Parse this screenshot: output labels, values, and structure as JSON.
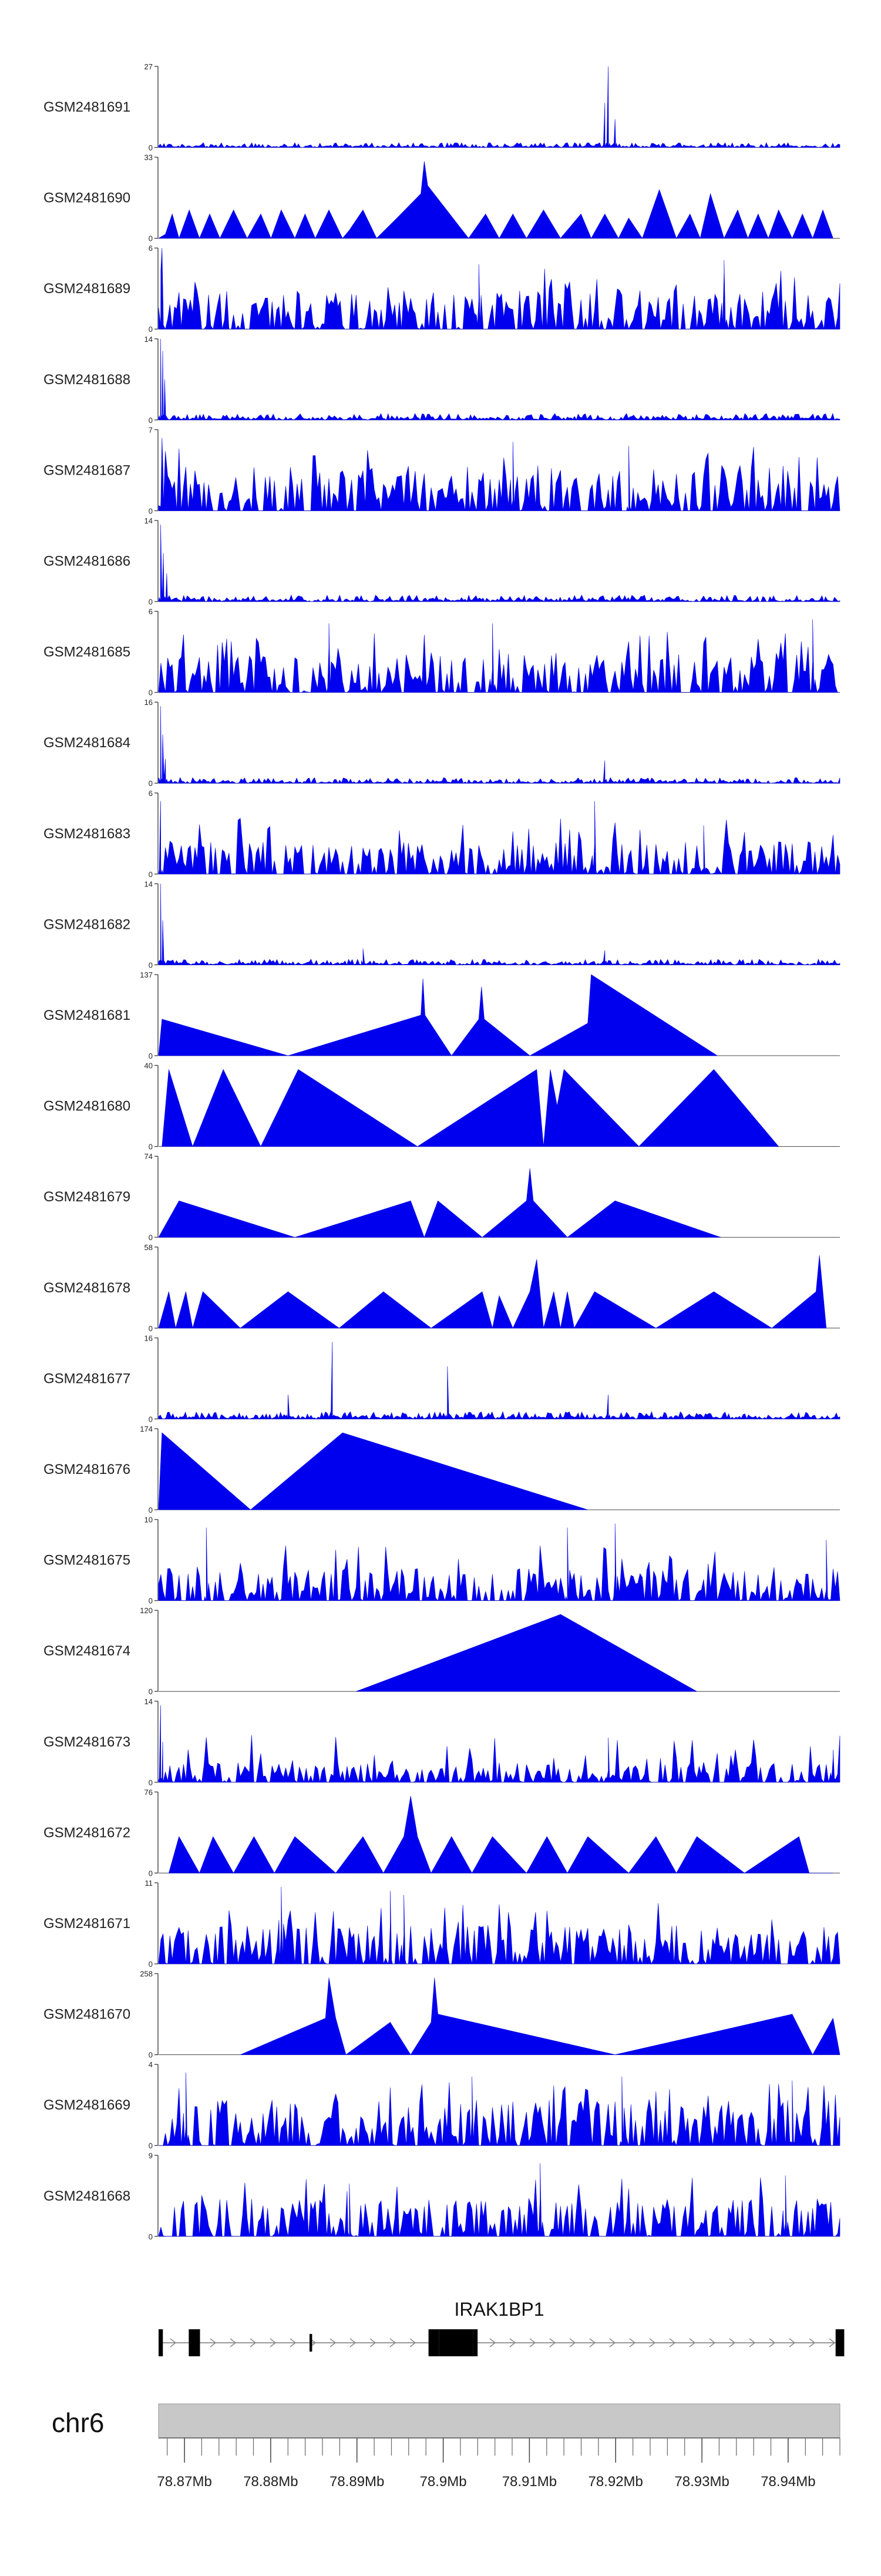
{
  "colors": {
    "signal": "#0000ee",
    "axis": "#444444",
    "ideogram": "#c8c8c8",
    "gene": "#000000"
  },
  "chart_data": {
    "type": "area",
    "chromosome": "chr6",
    "gene": {
      "name": "IRAK1BP1",
      "strand": "+"
    },
    "x_range": [
      78.867,
      78.946
    ],
    "ticks": [
      {
        "value": 78.87,
        "label": "78.87Mb"
      },
      {
        "value": 78.88,
        "label": "78.88Mb"
      },
      {
        "value": 78.89,
        "label": "78.89Mb"
      },
      {
        "value": 78.9,
        "label": "78.9Mb"
      },
      {
        "value": 78.91,
        "label": "78.91Mb"
      },
      {
        "value": 78.92,
        "label": "78.92Mb"
      },
      {
        "value": 78.93,
        "label": "78.93Mb"
      },
      {
        "value": 78.94,
        "label": "78.94Mb"
      }
    ],
    "exons": [
      {
        "start": 78.867,
        "end": 78.8675,
        "thick": true
      },
      {
        "start": 78.8705,
        "end": 78.8718,
        "thick": true
      },
      {
        "start": 78.8845,
        "end": 78.8848,
        "thick": false
      },
      {
        "start": 78.8983,
        "end": 78.8995,
        "thick": true
      },
      {
        "start": 78.8995,
        "end": 78.9035,
        "thick": true
      },
      {
        "start": 78.9035,
        "end": 78.904,
        "thick": true
      },
      {
        "start": 78.9455,
        "end": 78.9465,
        "thick": true
      }
    ],
    "tracks": [
      {
        "name": "GSM2481691",
        "max": "27",
        "ymax": 27,
        "style": "dense",
        "base": 0.06,
        "spikes": [
          [
            0.66,
            1.0
          ],
          [
            0.655,
            0.55
          ],
          [
            0.67,
            0.35
          ]
        ]
      },
      {
        "name": "GSM2481690",
        "max": "33",
        "ymax": 33,
        "style": "peaks",
        "points": [
          [
            0,
            0
          ],
          [
            0.01,
            0.05
          ],
          [
            0.02,
            0.3
          ],
          [
            0.03,
            0
          ],
          [
            0.045,
            0.35
          ],
          [
            0.06,
            0
          ],
          [
            0.075,
            0.3
          ],
          [
            0.09,
            0
          ],
          [
            0.11,
            0.35
          ],
          [
            0.13,
            0
          ],
          [
            0.15,
            0.3
          ],
          [
            0.165,
            0
          ],
          [
            0.18,
            0.35
          ],
          [
            0.2,
            0
          ],
          [
            0.215,
            0.3
          ],
          [
            0.23,
            0
          ],
          [
            0.25,
            0.35
          ],
          [
            0.27,
            0
          ],
          [
            0.28,
            0.1
          ],
          [
            0.3,
            0.35
          ],
          [
            0.32,
            0
          ],
          [
            0.35,
            0.25
          ],
          [
            0.385,
            0.55
          ],
          [
            0.39,
            0.95
          ],
          [
            0.395,
            0.65
          ],
          [
            0.455,
            0
          ],
          [
            0.48,
            0.3
          ],
          [
            0.5,
            0
          ],
          [
            0.52,
            0.3
          ],
          [
            0.54,
            0
          ],
          [
            0.565,
            0.35
          ],
          [
            0.59,
            0
          ],
          [
            0.62,
            0.3
          ],
          [
            0.635,
            0
          ],
          [
            0.655,
            0.3
          ],
          [
            0.675,
            0
          ],
          [
            0.69,
            0.25
          ],
          [
            0.71,
            0
          ],
          [
            0.735,
            0.6
          ],
          [
            0.76,
            0
          ],
          [
            0.78,
            0.3
          ],
          [
            0.795,
            0
          ],
          [
            0.81,
            0.55
          ],
          [
            0.83,
            0
          ],
          [
            0.85,
            0.35
          ],
          [
            0.865,
            0
          ],
          [
            0.88,
            0.3
          ],
          [
            0.895,
            0
          ],
          [
            0.91,
            0.35
          ],
          [
            0.93,
            0
          ],
          [
            0.945,
            0.3
          ],
          [
            0.96,
            0
          ],
          [
            0.975,
            0.35
          ],
          [
            0.99,
            0
          ]
        ]
      },
      {
        "name": "GSM2481689",
        "max": "6",
        "ymax": 6,
        "style": "noisy",
        "base": 0.3,
        "spikes": [
          [
            0.005,
            1.0
          ],
          [
            0.47,
            0.8
          ],
          [
            0.83,
            0.85
          ]
        ]
      },
      {
        "name": "GSM2481688",
        "max": "14",
        "ymax": 14,
        "style": "dense",
        "base": 0.08,
        "spikes": [
          [
            0.003,
            1.0
          ],
          [
            0.006,
            0.85
          ],
          [
            0.009,
            0.5
          ]
        ]
      },
      {
        "name": "GSM2481687",
        "max": "7",
        "ymax": 7,
        "style": "noisy",
        "base": 0.35,
        "spikes": [
          [
            0.005,
            0.9
          ],
          [
            0.52,
            0.85
          ],
          [
            0.69,
            0.8
          ]
        ]
      },
      {
        "name": "GSM2481686",
        "max": "14",
        "ymax": 14,
        "style": "dense",
        "base": 0.08,
        "spikes": [
          [
            0.003,
            0.95
          ],
          [
            0.007,
            0.6
          ],
          [
            0.012,
            0.35
          ]
        ]
      },
      {
        "name": "GSM2481685",
        "max": "6",
        "ymax": 6,
        "style": "noisy",
        "base": 0.3,
        "spikes": [
          [
            0.25,
            0.85
          ],
          [
            0.49,
            0.85
          ],
          [
            0.96,
            0.9
          ]
        ]
      },
      {
        "name": "GSM2481684",
        "max": "16",
        "ymax": 16,
        "style": "dense",
        "base": 0.07,
        "spikes": [
          [
            0.003,
            0.95
          ],
          [
            0.006,
            0.6
          ],
          [
            0.01,
            0.3
          ],
          [
            0.655,
            0.28
          ]
        ]
      },
      {
        "name": "GSM2481683",
        "max": "6",
        "ymax": 6,
        "style": "noisy",
        "base": 0.25,
        "spikes": [
          [
            0.003,
            0.9
          ],
          [
            0.64,
            0.9
          ],
          [
            0.8,
            0.6
          ]
        ]
      },
      {
        "name": "GSM2481682",
        "max": "14",
        "ymax": 14,
        "style": "dense",
        "base": 0.07,
        "spikes": [
          [
            0.003,
            1.0
          ],
          [
            0.006,
            0.55
          ],
          [
            0.3,
            0.2
          ],
          [
            0.655,
            0.18
          ]
        ]
      },
      {
        "name": "GSM2481681",
        "max": "137",
        "ymax": 137,
        "style": "peaks",
        "points": [
          [
            0,
            0
          ],
          [
            0.005,
            0.45
          ],
          [
            0.19,
            0
          ],
          [
            0.385,
            0.5
          ],
          [
            0.388,
            0.95
          ],
          [
            0.391,
            0.5
          ],
          [
            0.43,
            0
          ],
          [
            0.47,
            0.45
          ],
          [
            0.474,
            0.85
          ],
          [
            0.478,
            0.45
          ],
          [
            0.545,
            0
          ],
          [
            0.63,
            0.4
          ],
          [
            0.635,
            1.0
          ],
          [
            0.82,
            0
          ]
        ]
      },
      {
        "name": "GSM2481680",
        "max": "40",
        "ymax": 40,
        "style": "peaks",
        "points": [
          [
            0.005,
            0
          ],
          [
            0.015,
            0.95
          ],
          [
            0.05,
            0
          ],
          [
            0.095,
            0.95
          ],
          [
            0.15,
            0
          ],
          [
            0.205,
            0.95
          ],
          [
            0.38,
            0
          ],
          [
            0.555,
            0.95
          ],
          [
            0.565,
            0
          ],
          [
            0.575,
            0.95
          ],
          [
            0.585,
            0.5
          ],
          [
            0.595,
            0.95
          ],
          [
            0.705,
            0
          ],
          [
            0.815,
            0.95
          ],
          [
            0.91,
            0
          ]
        ]
      },
      {
        "name": "GSM2481679",
        "max": "74",
        "ymax": 74,
        "style": "peaks",
        "points": [
          [
            0,
            0
          ],
          [
            0.03,
            0.45
          ],
          [
            0.2,
            0
          ],
          [
            0.37,
            0.45
          ],
          [
            0.39,
            0
          ],
          [
            0.41,
            0.45
          ],
          [
            0.475,
            0
          ],
          [
            0.54,
            0.45
          ],
          [
            0.545,
            0.85
          ],
          [
            0.55,
            0.45
          ],
          [
            0.6,
            0
          ],
          [
            0.67,
            0.45
          ],
          [
            0.825,
            0
          ]
        ]
      },
      {
        "name": "GSM2481678",
        "max": "58",
        "ymax": 58,
        "style": "peaks",
        "points": [
          [
            0,
            0
          ],
          [
            0.015,
            0.45
          ],
          [
            0.025,
            0
          ],
          [
            0.04,
            0.45
          ],
          [
            0.05,
            0
          ],
          [
            0.065,
            0.45
          ],
          [
            0.12,
            0
          ],
          [
            0.19,
            0.45
          ],
          [
            0.265,
            0
          ],
          [
            0.33,
            0.45
          ],
          [
            0.4,
            0
          ],
          [
            0.475,
            0.45
          ],
          [
            0.49,
            0
          ],
          [
            0.5,
            0.4
          ],
          [
            0.52,
            0
          ],
          [
            0.545,
            0.45
          ],
          [
            0.555,
            0.85
          ],
          [
            0.565,
            0
          ],
          [
            0.58,
            0.45
          ],
          [
            0.59,
            0
          ],
          [
            0.6,
            0.45
          ],
          [
            0.61,
            0
          ],
          [
            0.64,
            0.45
          ],
          [
            0.73,
            0
          ],
          [
            0.815,
            0.45
          ],
          [
            0.9,
            0
          ],
          [
            0.965,
            0.45
          ],
          [
            0.97,
            0.9
          ],
          [
            0.98,
            0
          ]
        ]
      },
      {
        "name": "GSM2481677",
        "max": "16",
        "ymax": 16,
        "style": "dense",
        "base": 0.09,
        "spikes": [
          [
            0.255,
            0.95
          ],
          [
            0.424,
            0.65
          ],
          [
            0.66,
            0.3
          ],
          [
            0.19,
            0.3
          ]
        ]
      },
      {
        "name": "GSM2481676",
        "max": "174",
        "ymax": 174,
        "style": "peaks",
        "points": [
          [
            0,
            0
          ],
          [
            0.005,
            0.95
          ],
          [
            0.135,
            0
          ],
          [
            0.27,
            0.95
          ],
          [
            0.63,
            0
          ]
        ]
      },
      {
        "name": "GSM2481675",
        "max": "10",
        "ymax": 10,
        "style": "noisy",
        "base": 0.25,
        "spikes": [
          [
            0.07,
            0.9
          ],
          [
            0.6,
            0.9
          ],
          [
            0.67,
            0.95
          ],
          [
            0.98,
            0.75
          ]
        ]
      },
      {
        "name": "GSM2481674",
        "max": "120",
        "ymax": 120,
        "style": "peaks",
        "points": [
          [
            0.29,
            0
          ],
          [
            0.59,
            0.95
          ],
          [
            0.79,
            0
          ]
        ]
      },
      {
        "name": "GSM2481673",
        "max": "14",
        "ymax": 14,
        "style": "noisy",
        "base": 0.15,
        "spikes": [
          [
            0.003,
            0.95
          ],
          [
            0.006,
            0.5
          ],
          [
            0.66,
            0.55
          ],
          [
            0.99,
            0.4
          ]
        ]
      },
      {
        "name": "GSM2481672",
        "max": "76",
        "ymax": 76,
        "style": "peaks",
        "points": [
          [
            0.015,
            0
          ],
          [
            0.03,
            0.45
          ],
          [
            0.06,
            0
          ],
          [
            0.08,
            0.45
          ],
          [
            0.11,
            0
          ],
          [
            0.14,
            0.45
          ],
          [
            0.17,
            0
          ],
          [
            0.2,
            0.45
          ],
          [
            0.26,
            0
          ],
          [
            0.3,
            0.45
          ],
          [
            0.33,
            0
          ],
          [
            0.36,
            0.45
          ],
          [
            0.37,
            0.95
          ],
          [
            0.38,
            0.45
          ],
          [
            0.4,
            0
          ],
          [
            0.43,
            0.45
          ],
          [
            0.46,
            0
          ],
          [
            0.49,
            0.45
          ],
          [
            0.54,
            0
          ],
          [
            0.57,
            0.45
          ],
          [
            0.6,
            0
          ],
          [
            0.63,
            0.45
          ],
          [
            0.69,
            0
          ],
          [
            0.73,
            0.45
          ],
          [
            0.76,
            0
          ],
          [
            0.79,
            0.45
          ],
          [
            0.86,
            0
          ],
          [
            0.94,
            0.45
          ],
          [
            0.955,
            0
          ],
          [
            0.99,
            0
          ]
        ]
      },
      {
        "name": "GSM2481671",
        "max": "11",
        "ymax": 11,
        "style": "noisy",
        "base": 0.3,
        "spikes": [
          [
            0.18,
            0.95
          ],
          [
            0.34,
            0.9
          ],
          [
            0.36,
            0.85
          ]
        ]
      },
      {
        "name": "GSM2481670",
        "max": "258",
        "ymax": 258,
        "style": "peaks",
        "points": [
          [
            0.12,
            0
          ],
          [
            0.245,
            0.45
          ],
          [
            0.25,
            0.95
          ],
          [
            0.26,
            0.45
          ],
          [
            0.275,
            0
          ],
          [
            0.34,
            0.4
          ],
          [
            0.37,
            0
          ],
          [
            0.4,
            0.4
          ],
          [
            0.405,
            0.95
          ],
          [
            0.41,
            0.5
          ],
          [
            0.67,
            0
          ],
          [
            0.93,
            0.5
          ],
          [
            0.96,
            0
          ],
          [
            0.99,
            0.45
          ],
          [
            1.0,
            0
          ]
        ]
      },
      {
        "name": "GSM2481669",
        "max": "4",
        "ymax": 4,
        "style": "noisy",
        "base": 0.35,
        "spikes": [
          [
            0.04,
            0.9
          ],
          [
            0.46,
            0.85
          ],
          [
            0.68,
            0.85
          ],
          [
            0.93,
            0.8
          ]
        ]
      },
      {
        "name": "GSM2481668",
        "max": "9",
        "ymax": 9,
        "style": "noisy",
        "base": 0.3,
        "spikes": [
          [
            0.56,
            0.9
          ],
          [
            0.92,
            0.75
          ],
          [
            0.28,
            0.65
          ]
        ]
      }
    ]
  }
}
